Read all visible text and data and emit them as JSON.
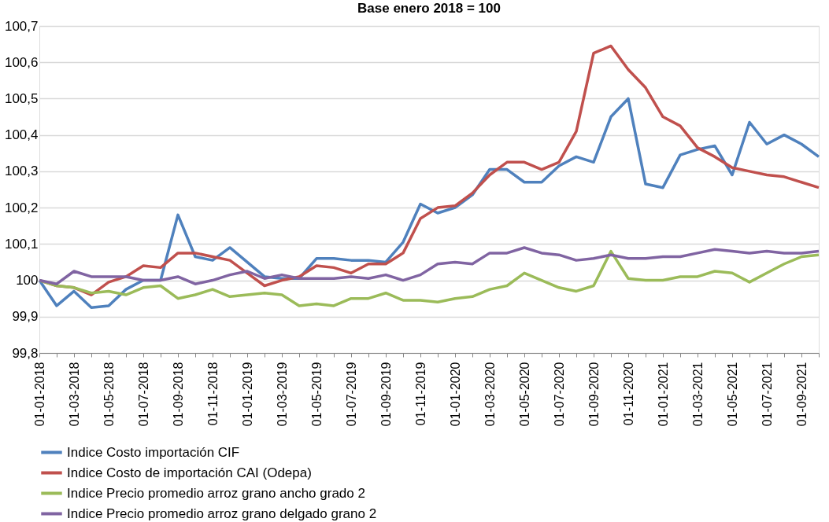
{
  "chart_data": {
    "type": "line",
    "title": "Base enero 2018 = 100",
    "categories": [
      "01-01-2018",
      null,
      "01-03-2018",
      null,
      "01-05-2018",
      null,
      "01-07-2018",
      null,
      "01-09-2018",
      null,
      "01-11-2018",
      null,
      "01-01-2019",
      null,
      "01-03-2019",
      null,
      "01-05-2019",
      null,
      "01-07-2019",
      null,
      "01-09-2019",
      null,
      "01-11-2019",
      null,
      "01-01-2020",
      null,
      "01-03-2020",
      null,
      "01-05-2020",
      null,
      "01-07-2020",
      null,
      "01-09-2020",
      null,
      "01-11-2020",
      null,
      "01-01-2021",
      null,
      "01-03-2021",
      null,
      "01-05-2021",
      null,
      "01-07-2021",
      null,
      "01-09-2021",
      null
    ],
    "series": [
      {
        "name": "Indice  Costo importación CIF",
        "color": "#4f81bd",
        "values": [
          100.0,
          99.93,
          99.97,
          99.925,
          99.93,
          99.975,
          100.0,
          100.0,
          100.18,
          100.065,
          100.055,
          100.09,
          100.05,
          100.01,
          100.005,
          100.005,
          100.06,
          100.06,
          100.055,
          100.055,
          100.05,
          100.105,
          100.21,
          100.185,
          100.2,
          100.235,
          100.305,
          100.305,
          100.27,
          100.27,
          100.315,
          100.34,
          100.325,
          100.45,
          100.5,
          100.265,
          100.255,
          100.345,
          100.36,
          100.37,
          100.29,
          100.435,
          100.375,
          100.4,
          100.375,
          100.34
        ]
      },
      {
        "name": "Indice Costo de importación CAI (Odepa)",
        "color": "#c0504d",
        "values": [
          100.0,
          99.985,
          99.98,
          99.96,
          99.995,
          100.01,
          100.04,
          100.035,
          100.075,
          100.075,
          100.065,
          100.055,
          100.02,
          99.985,
          100.0,
          100.01,
          100.04,
          100.035,
          100.02,
          100.045,
          100.045,
          100.075,
          100.17,
          100.2,
          100.205,
          100.24,
          100.29,
          100.325,
          100.325,
          100.305,
          100.325,
          100.41,
          100.625,
          100.645,
          100.58,
          100.53,
          100.45,
          100.425,
          100.365,
          100.34,
          100.31,
          100.3,
          100.29,
          100.285,
          100.27,
          100.255
        ]
      },
      {
        "name": "Indice Precio promedio arroz grano ancho grado 2",
        "color": "#9bbb59",
        "values": [
          100.0,
          99.985,
          99.98,
          99.965,
          99.97,
          99.96,
          99.98,
          99.985,
          99.95,
          99.96,
          99.975,
          99.955,
          99.96,
          99.965,
          99.96,
          99.93,
          99.935,
          99.93,
          99.95,
          99.95,
          99.965,
          99.945,
          99.945,
          99.94,
          99.95,
          99.955,
          99.975,
          99.985,
          100.02,
          100.0,
          99.98,
          99.97,
          99.985,
          100.08,
          100.005,
          100.0,
          100.0,
          100.01,
          100.01,
          100.025,
          100.02,
          99.995,
          100.02,
          100.045,
          100.065,
          100.07
        ]
      },
      {
        "name": "Indice Precio promedio arroz grano delgado grano 2",
        "color": "#8064a2",
        "values": [
          100.0,
          99.99,
          100.025,
          100.01,
          100.01,
          100.01,
          100.0,
          100.0,
          100.01,
          99.99,
          100.0,
          100.015,
          100.025,
          100.005,
          100.015,
          100.005,
          100.005,
          100.005,
          100.01,
          100.005,
          100.015,
          100.0,
          100.015,
          100.045,
          100.05,
          100.045,
          100.075,
          100.075,
          100.09,
          100.075,
          100.07,
          100.055,
          100.06,
          100.07,
          100.06,
          100.06,
          100.065,
          100.065,
          100.075,
          100.085,
          100.08,
          100.075,
          100.08,
          100.075,
          100.075,
          100.08
        ]
      }
    ],
    "ylim": [
      99.8,
      100.7
    ],
    "yticks": [
      {
        "value": 99.8,
        "label": "99,8"
      },
      {
        "value": 99.9,
        "label": "99,9"
      },
      {
        "value": 100,
        "label": "100"
      },
      {
        "value": 100.1,
        "label": "100,1"
      },
      {
        "value": 100.2,
        "label": "100,2"
      },
      {
        "value": 100.3,
        "label": "100,3"
      },
      {
        "value": 100.4,
        "label": "100,4"
      },
      {
        "value": 100.5,
        "label": "100,5"
      },
      {
        "value": 100.6,
        "label": "100,6"
      },
      {
        "value": 100.7,
        "label": "100,7"
      }
    ],
    "grid": "y",
    "legend": "bottom",
    "line_style": "solid"
  }
}
